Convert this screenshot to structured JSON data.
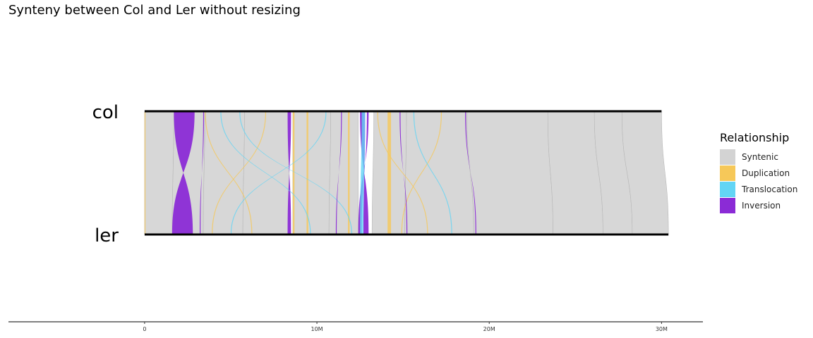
{
  "chart_data": {
    "type": "synteny",
    "title": "Synteny between Col and Ler without resizing",
    "genomes": [
      {
        "name": "col",
        "length": 30.0
      },
      {
        "name": "ler",
        "length": 30.4
      }
    ],
    "xaxis": {
      "domain": [
        -7.9,
        32.4
      ],
      "ticks": [
        {
          "value": 0,
          "label": "0"
        },
        {
          "value": 10,
          "label": "10M"
        },
        {
          "value": 20,
          "label": "20M"
        },
        {
          "value": 30,
          "label": "30M"
        }
      ]
    },
    "legend": {
      "title": "Relationship",
      "placement": "right",
      "items": [
        {
          "label": "Syntenic",
          "color": "#d3d3d3"
        },
        {
          "label": "Duplication",
          "color": "#f6c859"
        },
        {
          "label": "Translocation",
          "color": "#63d5f5"
        },
        {
          "label": "Inversion",
          "color": "#8b2bd6"
        }
      ]
    },
    "blocks": [
      {
        "type": "Syntenic",
        "col": [
          0.0,
          1.7
        ],
        "ler": [
          0.0,
          1.6
        ]
      },
      {
        "type": "Syntenic",
        "col": [
          1.7,
          3.5
        ],
        "ler": [
          1.6,
          3.4
        ]
      },
      {
        "type": "Syntenic",
        "col": [
          3.5,
          5.8
        ],
        "ler": [
          3.4,
          5.7
        ]
      },
      {
        "type": "Syntenic",
        "col": [
          5.8,
          8.4
        ],
        "ler": [
          5.7,
          8.4
        ]
      },
      {
        "type": "Syntenic",
        "col": [
          8.6,
          10.8
        ],
        "ler": [
          8.6,
          10.7
        ]
      },
      {
        "type": "Syntenic",
        "col": [
          10.8,
          12.4
        ],
        "ler": [
          10.7,
          12.4
        ]
      },
      {
        "type": "Syntenic",
        "col": [
          13.3,
          15.2
        ],
        "ler": [
          13.2,
          15.1
        ]
      },
      {
        "type": "Syntenic",
        "col": [
          15.2,
          18.7
        ],
        "ler": [
          15.1,
          19.1
        ]
      },
      {
        "type": "Syntenic",
        "col": [
          18.7,
          23.4
        ],
        "ler": [
          19.1,
          23.7
        ]
      },
      {
        "type": "Syntenic",
        "col": [
          23.4,
          26.1
        ],
        "ler": [
          23.7,
          26.6
        ]
      },
      {
        "type": "Syntenic",
        "col": [
          26.1,
          27.7
        ],
        "ler": [
          26.6,
          28.3
        ]
      },
      {
        "type": "Syntenic",
        "col": [
          27.7,
          30.0
        ],
        "ler": [
          28.3,
          30.4
        ]
      },
      {
        "type": "Inversion",
        "col": [
          1.7,
          2.9
        ],
        "ler": [
          1.6,
          2.8
        ]
      },
      {
        "type": "Inversion",
        "col": [
          8.3,
          8.5
        ],
        "ler": [
          8.3,
          8.5
        ]
      },
      {
        "type": "Inversion",
        "col": [
          12.5,
          12.8
        ],
        "ler": [
          12.7,
          13.0
        ]
      },
      {
        "type": "Inversion",
        "col": [
          12.9,
          13.0
        ],
        "ler": [
          12.4,
          12.6
        ]
      },
      {
        "type": "Translocation",
        "col": [
          12.6,
          12.8
        ],
        "ler": [
          12.5,
          12.7
        ]
      },
      {
        "type": "Duplication",
        "col": [
          0.0,
          0.05
        ],
        "ler": [
          0.0,
          0.05
        ]
      },
      {
        "type": "Duplication",
        "col": [
          8.6,
          8.7
        ],
        "ler": [
          8.6,
          8.7
        ]
      },
      {
        "type": "Duplication",
        "col": [
          9.4,
          9.5
        ],
        "ler": [
          9.4,
          9.5
        ]
      },
      {
        "type": "Duplication",
        "col": [
          11.8,
          11.9
        ],
        "ler": [
          11.8,
          11.9
        ]
      },
      {
        "type": "Duplication",
        "col": [
          14.1,
          14.3
        ],
        "ler": [
          14.1,
          14.3
        ]
      },
      {
        "type": "Duplication",
        "col": [
          3.5,
          3.55
        ],
        "ler": [
          6.2,
          6.25
        ]
      },
      {
        "type": "Duplication",
        "col": [
          7.0,
          7.05
        ],
        "ler": [
          3.9,
          3.95
        ]
      },
      {
        "type": "Duplication",
        "col": [
          13.5,
          13.55
        ],
        "ler": [
          16.4,
          16.45
        ]
      },
      {
        "type": "Duplication",
        "col": [
          17.2,
          17.25
        ],
        "ler": [
          14.9,
          14.95
        ]
      },
      {
        "type": "Translocation",
        "col": [
          4.4,
          4.45
        ],
        "ler": [
          9.6,
          9.65
        ]
      },
      {
        "type": "Translocation",
        "col": [
          10.5,
          10.55
        ],
        "ler": [
          5.0,
          5.05
        ]
      },
      {
        "type": "Translocation",
        "col": [
          5.5,
          5.55
        ],
        "ler": [
          12.0,
          12.05
        ]
      },
      {
        "type": "Translocation",
        "col": [
          15.6,
          15.65
        ],
        "ler": [
          17.8,
          17.85
        ]
      },
      {
        "type": "Inversion",
        "col": [
          3.4,
          3.45
        ],
        "ler": [
          3.2,
          3.25
        ]
      },
      {
        "type": "Inversion",
        "col": [
          11.4,
          11.45
        ],
        "ler": [
          11.1,
          11.15
        ]
      },
      {
        "type": "Inversion",
        "col": [
          14.8,
          14.85
        ],
        "ler": [
          15.2,
          15.25
        ]
      },
      {
        "type": "Inversion",
        "col": [
          18.6,
          18.65
        ],
        "ler": [
          19.2,
          19.25
        ]
      }
    ]
  }
}
